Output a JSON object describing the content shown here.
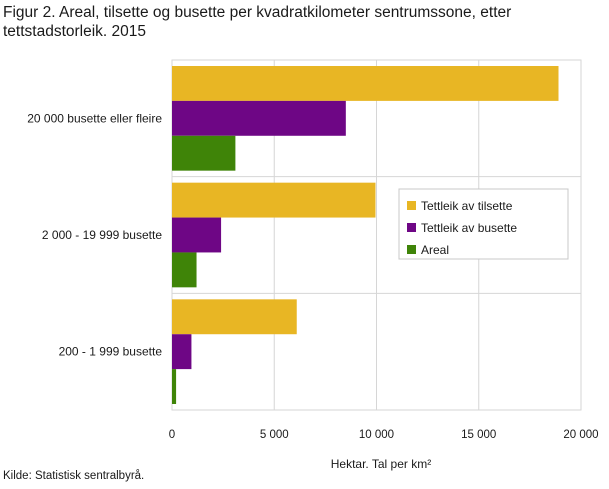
{
  "chart_data": {
    "type": "bar",
    "orientation": "horizontal",
    "title": "Figur 2. Areal, tilsette og busette per kvadratkilometer sentrumssone, etter tettstadstorleik. 2015",
    "xlabel": "Hektar. Tal per km²",
    "xlim": [
      0,
      20000
    ],
    "xticks": [
      0,
      5000,
      10000,
      15000,
      20000
    ],
    "xtick_labels": [
      "0",
      "5 000",
      "10 000",
      "15 000",
      "20 000"
    ],
    "grid": "vertical",
    "legend_position": "right-middle",
    "categories": [
      "20 000 busette eller fleire",
      "2 000 - 19 999 busette",
      "200 - 1 999 busette"
    ],
    "series": [
      {
        "name": "Tettleik av tilsette",
        "color": "#e8b624",
        "values": [
          18900,
          9950,
          6100
        ]
      },
      {
        "name": "Tettleik av busette",
        "color": "#6e0685",
        "values": [
          8500,
          2400,
          950
        ]
      },
      {
        "name": "Areal",
        "color": "#3f8408",
        "values": [
          3100,
          1200,
          200
        ]
      }
    ]
  },
  "source": "Kilde: Statistisk sentralbyrå."
}
